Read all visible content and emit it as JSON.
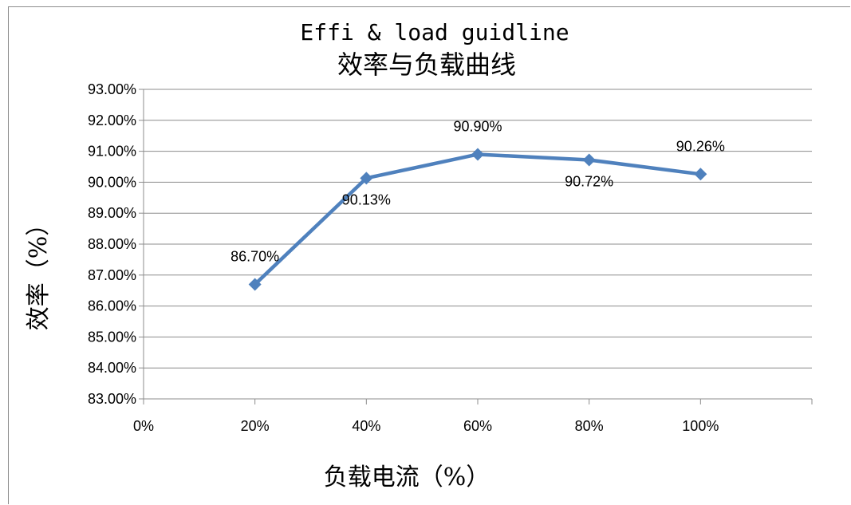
{
  "chart_data": {
    "type": "line",
    "title": "Effi & load guidline",
    "subtitle": "效率与负载曲线",
    "xlabel": "负载电流（%）",
    "ylabel": "效率（%）",
    "x_ticks": [
      "0%",
      "20%",
      "40%",
      "60%",
      "80%",
      "100%"
    ],
    "y_ticks": [
      "83.00%",
      "84.00%",
      "85.00%",
      "86.00%",
      "87.00%",
      "88.00%",
      "89.00%",
      "90.00%",
      "91.00%",
      "92.00%",
      "93.00%"
    ],
    "xlim": [
      0,
      120
    ],
    "ylim": [
      83,
      93
    ],
    "grid": true,
    "marker": "diamond",
    "series_color": "#4f81bd",
    "series": [
      {
        "x": [
          20,
          40,
          60,
          80,
          100
        ],
        "values": [
          86.7,
          90.13,
          90.9,
          90.72,
          90.26
        ],
        "labels": [
          "86.70%",
          "90.13%",
          "90.90%",
          "90.72%",
          "90.26%"
        ]
      }
    ]
  }
}
